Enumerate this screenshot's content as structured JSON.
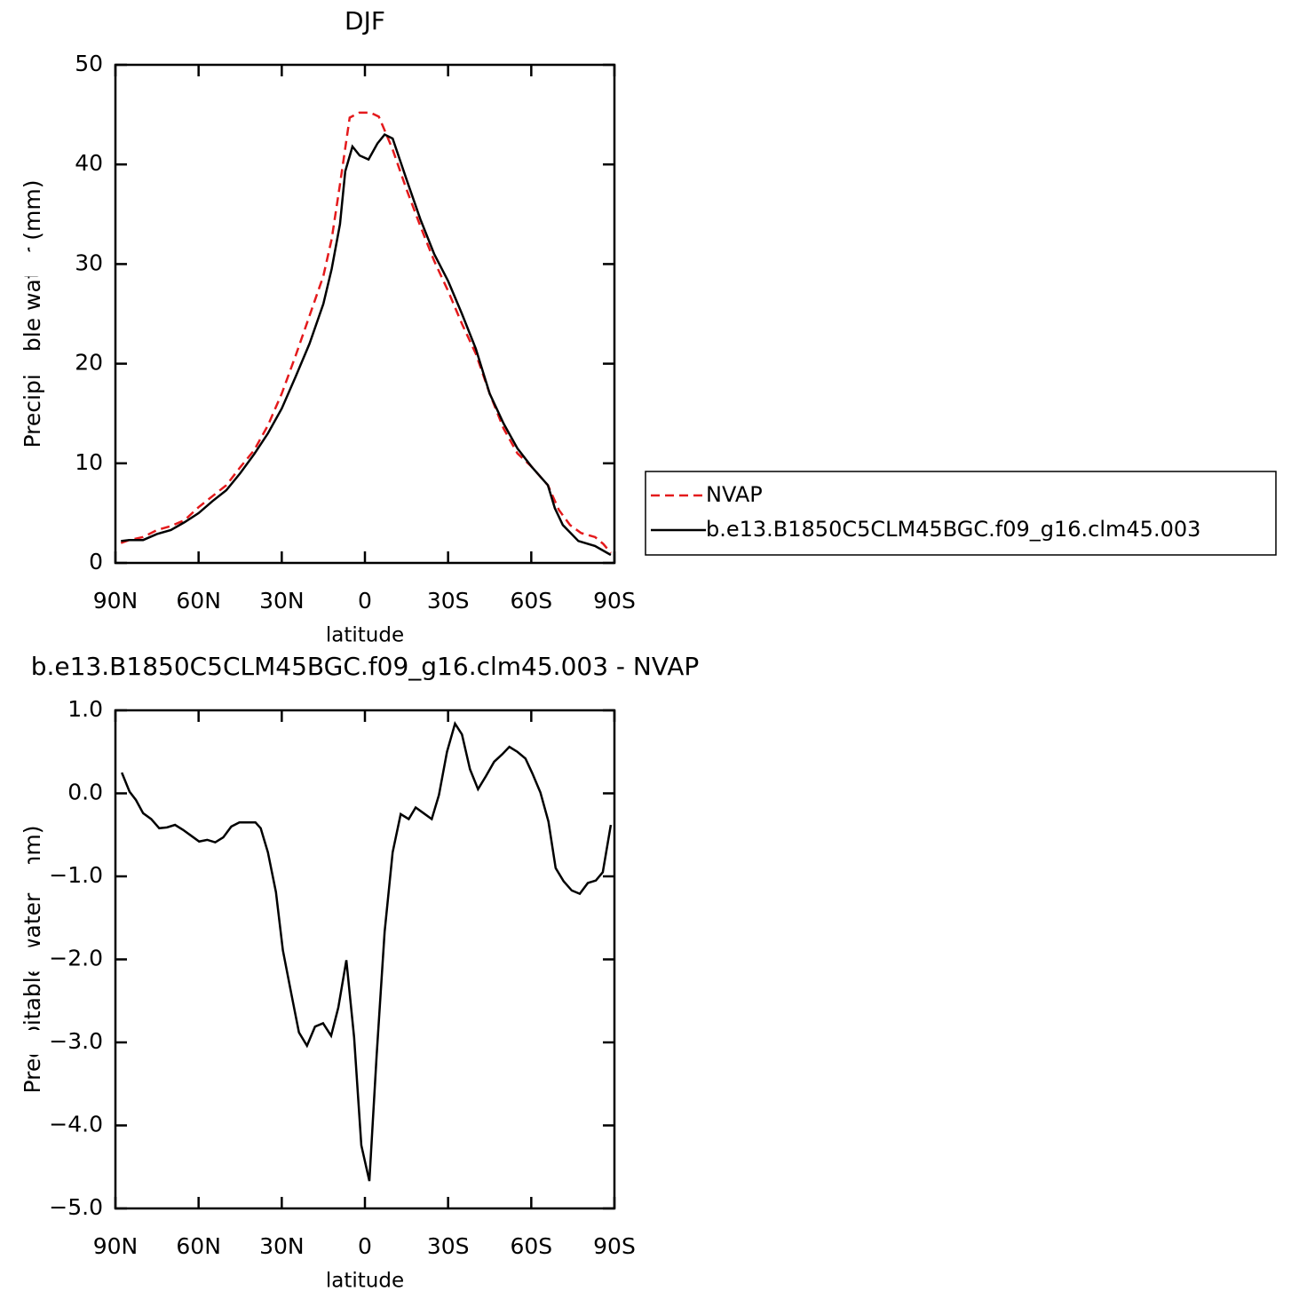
{
  "chart_data": [
    {
      "type": "line",
      "title": "DJF",
      "xlabel": "latitude",
      "ylabel": "Precipitable water (mm)",
      "xlim": [
        90,
        -90
      ],
      "xticks": [
        {
          "value": 90,
          "label": "90N"
        },
        {
          "value": 60,
          "label": "60N"
        },
        {
          "value": 30,
          "label": "30N"
        },
        0,
        {
          "value": -30,
          "label": "30S"
        },
        {
          "value": -60,
          "label": "60S"
        },
        {
          "value": -90,
          "label": "90S"
        }
      ],
      "ylim": [
        0,
        50
      ],
      "yticks": [
        0,
        10,
        20,
        30,
        40,
        50
      ],
      "legend": "right",
      "series": [
        {
          "name": "NVAP",
          "color": "#e41a1c",
          "linestyle": "dashed",
          "x": [
            88,
            85,
            80,
            75,
            70,
            65,
            60,
            55,
            50,
            45,
            40,
            35,
            30,
            25,
            20,
            15,
            12,
            9,
            5.5,
            2,
            -2,
            -5,
            -7,
            -10,
            -15,
            -20,
            -25,
            -30,
            -35,
            -40,
            -45,
            -50,
            -55,
            -60,
            -66,
            -70,
            -74,
            -78,
            -83,
            -86,
            -88.7
          ],
          "values": [
            2.0,
            2.3,
            2.6,
            3.3,
            3.7,
            4.3,
            5.6,
            6.7,
            7.8,
            9.6,
            11.3,
            13.8,
            17.0,
            20.8,
            24.8,
            28.8,
            32.5,
            38.0,
            44.7,
            45.2,
            45.2,
            44.8,
            43.5,
            41.5,
            37.5,
            33.8,
            30.3,
            27.3,
            24.0,
            21.0,
            17.0,
            13.5,
            11.0,
            9.7,
            7.8,
            5.3,
            3.8,
            3.0,
            2.6,
            1.9,
            1.0
          ]
        },
        {
          "name": "b.e13.B1850C5CLM45BGC.f09_g16.clm45.003",
          "color": "#000000",
          "linestyle": "solid",
          "x": [
            88,
            85,
            80,
            75,
            70,
            65,
            60,
            55,
            50,
            45,
            40,
            35,
            30,
            25,
            20,
            15,
            12,
            9,
            7.1,
            4.5,
            1.9,
            -1.3,
            -4.5,
            -7.1,
            -10,
            -15,
            -20,
            -25,
            -30,
            -35,
            -40,
            -45,
            -50,
            -55,
            -60,
            -66,
            -68.5,
            -71.4,
            -77,
            -83,
            -88.7
          ],
          "values": [
            2.2,
            2.3,
            2.3,
            2.9,
            3.3,
            4.1,
            5.0,
            6.2,
            7.3,
            9.0,
            10.9,
            13.0,
            15.5,
            18.7,
            22.0,
            26.0,
            29.5,
            34.0,
            39.3,
            41.8,
            40.9,
            40.5,
            42.1,
            43.0,
            42.6,
            38.5,
            34.5,
            31.0,
            28.3,
            25.0,
            21.5,
            17.0,
            14.0,
            11.5,
            9.7,
            7.8,
            5.5,
            3.8,
            2.2,
            1.7,
            0.8
          ]
        }
      ]
    },
    {
      "type": "line",
      "title": "b.e13.B1850C5CLM45BGC.f09_g16.clm45.003 - NVAP",
      "xlabel": "latitude",
      "ylabel": "Precipitable water (mm)",
      "xlim": [
        90,
        -90
      ],
      "xticks": [
        {
          "value": 90,
          "label": "90N"
        },
        {
          "value": 60,
          "label": "60N"
        },
        {
          "value": 30,
          "label": "30N"
        },
        0,
        {
          "value": -30,
          "label": "30S"
        },
        {
          "value": -60,
          "label": "60S"
        },
        {
          "value": -90,
          "label": "90S"
        }
      ],
      "ylim": [
        -5,
        1
      ],
      "yticks": [
        {
          "value": -5,
          "label": "−5.0"
        },
        {
          "value": -4,
          "label": "−4.0"
        },
        {
          "value": -3,
          "label": "−3.0"
        },
        {
          "value": -2,
          "label": "−2.0"
        },
        {
          "value": -1,
          "label": "−1.0"
        },
        {
          "value": 0,
          "label": "0.0"
        },
        {
          "value": 1,
          "label": "1.0"
        }
      ],
      "color": "#000000",
      "x": [
        87.7,
        84.9,
        82.6,
        80,
        77.1,
        74.2,
        71.4,
        68.5,
        65.6,
        62.7,
        59.8,
        56.9,
        54,
        51.1,
        48.2,
        45.3,
        42.4,
        39.5,
        37.6,
        35,
        32.1,
        29.6,
        26.4,
        23.8,
        20.9,
        18,
        15.1,
        12.2,
        9.6,
        6.7,
        3.9,
        1.3,
        -1.6,
        -4.2,
        -7.1,
        -10,
        -12.9,
        -15.8,
        -18.3,
        -21.2,
        -24.1,
        -26.7,
        -29.6,
        -32.5,
        -35,
        -37.9,
        -40.8,
        -43.7,
        -46.6,
        -49.5,
        -52.1,
        -55,
        -57.9,
        -60.4,
        -63.3,
        -66.2,
        -68.8,
        -71.7,
        -74.6,
        -77.5,
        -80.4,
        -83.3,
        -85.8,
        -88.7
      ],
      "values": [
        0.25,
        0.02,
        -0.08,
        -0.24,
        -0.31,
        -0.42,
        -0.41,
        -0.38,
        -0.44,
        -0.51,
        -0.58,
        -0.56,
        -0.59,
        -0.53,
        -0.4,
        -0.35,
        -0.35,
        -0.35,
        -0.42,
        -0.71,
        -1.19,
        -1.89,
        -2.44,
        -2.88,
        -3.04,
        -2.81,
        -2.77,
        -2.92,
        -2.58,
        -2.01,
        -2.94,
        -4.24,
        -4.67,
        -3.17,
        -1.67,
        -0.71,
        -0.25,
        -0.31,
        -0.17,
        -0.24,
        -0.31,
        -0.02,
        0.5,
        0.84,
        0.71,
        0.29,
        0.05,
        0.21,
        0.38,
        0.47,
        0.56,
        0.5,
        0.42,
        0.24,
        0.01,
        -0.34,
        -0.9,
        -1.06,
        -1.17,
        -1.21,
        -1.08,
        -1.05,
        -0.95,
        -0.38
      ]
    }
  ]
}
